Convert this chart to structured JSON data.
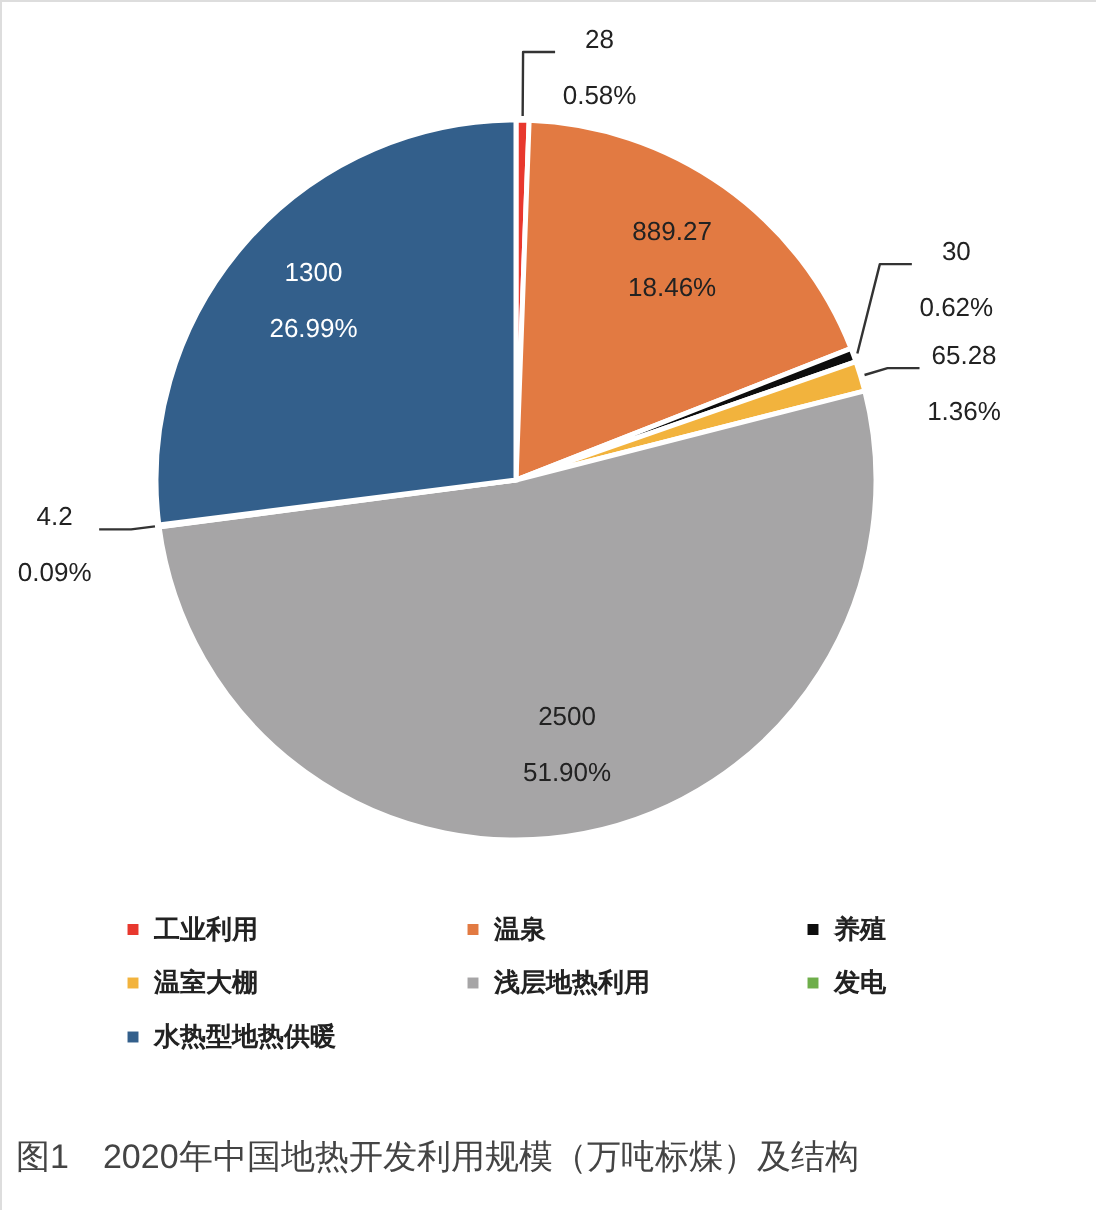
{
  "chart_data": {
    "type": "pie",
    "title": "图1　2020年中国地热开发利用规模（万吨标煤）及结构",
    "categories": [
      "工业利用",
      "温泉",
      "养殖",
      "温室大棚",
      "浅层地热利用",
      "发电",
      "水热型地热供暖"
    ],
    "values": [
      28,
      889.27,
      30,
      65.28,
      2500,
      4.2,
      1300
    ],
    "colors": [
      "#e8382e",
      "#e27a42",
      "#0d0d0d",
      "#f2b33d",
      "#a6a5a6",
      "#6eae4a",
      "#335f8b"
    ],
    "value_labels": [
      "28\n0.58%",
      "889.27\n18.46%",
      "30\n0.62%",
      "65.28\n1.36%",
      "2500\n51.90%",
      "4.2\n0.09%",
      "1300\n26.99%"
    ],
    "legend": "bottom"
  }
}
